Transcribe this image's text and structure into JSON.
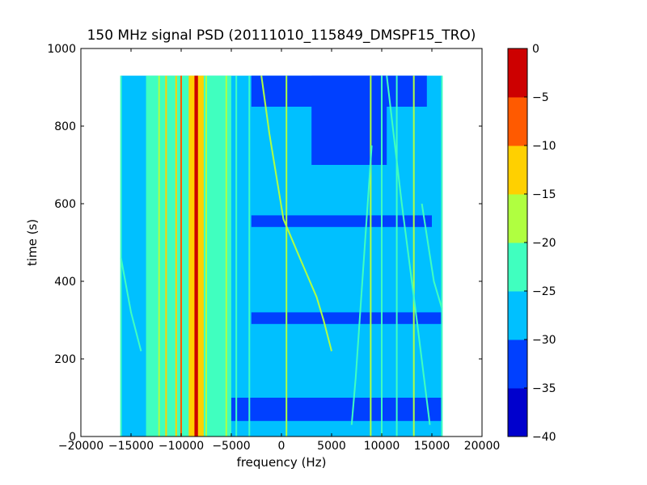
{
  "chart_data": {
    "type": "heatmap",
    "title": "150 MHz signal PSD (20111010_115849_DMSPF15_TRO)",
    "xlabel": "frequency (Hz)",
    "ylabel": "time (s)",
    "xlim": [
      -20000,
      20000
    ],
    "ylim": [
      0,
      1000
    ],
    "xticks": [
      -20000,
      -15000,
      -10000,
      -5000,
      0,
      5000,
      10000,
      15000,
      20000
    ],
    "xtick_labels": [
      "−20000",
      "−15000",
      "−10000",
      "−5000",
      "0",
      "5000",
      "10000",
      "15000",
      "20000"
    ],
    "yticks": [
      0,
      200,
      400,
      600,
      800,
      1000
    ],
    "ytick_labels": [
      "0",
      "200",
      "400",
      "600",
      "800",
      "1000"
    ],
    "data_extent": {
      "x": [
        -16000,
        16000
      ],
      "y": [
        0,
        930
      ]
    },
    "background_level_db": -27.5,
    "colorbar": {
      "levels": [
        -40,
        -35,
        -30,
        -25,
        -20,
        -15,
        -10,
        -5,
        0
      ],
      "tick_labels": [
        "−40",
        "−35",
        "−30",
        "−25",
        "−20",
        "−15",
        "−10",
        "−5",
        "0"
      ],
      "colors": [
        "#0000cd",
        "#0040ff",
        "#00c0ff",
        "#40ffbf",
        "#b0ff40",
        "#ffd000",
        "#ff5a00",
        "#cd0000"
      ],
      "placement": "right"
    },
    "low_power_bands": [
      {
        "t": [
          40,
          100
        ],
        "f": [
          -5000,
          16000
        ],
        "db": -32.5
      },
      {
        "t": [
          290,
          320
        ],
        "f": [
          -3000,
          16000
        ],
        "db": -32.5
      },
      {
        "t": [
          540,
          570
        ],
        "f": [
          -3000,
          15000
        ],
        "db": -32.5
      },
      {
        "t": [
          850,
          930
        ],
        "f": [
          -3000,
          14500
        ],
        "db": -32.5
      },
      {
        "t": [
          700,
          930
        ],
        "f": [
          3000,
          10500
        ],
        "db": -32.5
      }
    ],
    "warm_region": {
      "t": [
        0,
        930
      ],
      "f": [
        -13500,
        -5000
      ],
      "db": -22.5
    },
    "carrier": {
      "f": -8500,
      "t": [
        0,
        930
      ],
      "width_hz": 350,
      "db": -2.5,
      "envelope_width_hz": 1500,
      "envelope_db": -12.5
    },
    "vertical_lines": [
      {
        "f": -16000,
        "db": -22.5
      },
      {
        "f": -13000,
        "db": -22.5
      },
      {
        "f": -12200,
        "db": -17.5
      },
      {
        "f": -11500,
        "db": -12.5
      },
      {
        "f": -10500,
        "db": -12.5
      },
      {
        "f": -10000,
        "db": -7.5
      },
      {
        "f": -9000,
        "db": -17.5
      },
      {
        "f": -7500,
        "db": -17.5
      },
      {
        "f": -6500,
        "db": -22.5
      },
      {
        "f": -5500,
        "db": -17.5
      },
      {
        "f": -4500,
        "db": -22.5
      },
      {
        "f": -3200,
        "db": -22.5
      },
      {
        "f": 500,
        "db": -17.5
      },
      {
        "f": 8900,
        "db": -17.5
      },
      {
        "f": 10000,
        "db": -22.5
      },
      {
        "f": 11500,
        "db": -22.5
      },
      {
        "f": 13200,
        "db": -17.5
      },
      {
        "f": 16000,
        "db": -22.5
      }
    ],
    "curves": [
      {
        "points": [
          [
            -2000,
            930
          ],
          [
            -1200,
            780
          ],
          [
            200,
            560
          ],
          [
            2000,
            450
          ],
          [
            3500,
            360
          ],
          [
            4200,
            300
          ],
          [
            5000,
            220
          ]
        ],
        "db": -17.5
      },
      {
        "points": [
          [
            -16000,
            460
          ],
          [
            -15000,
            320
          ],
          [
            -14000,
            220
          ]
        ],
        "db": -22.5
      },
      {
        "points": [
          [
            9000,
            750
          ],
          [
            8600,
            600
          ],
          [
            8200,
            450
          ],
          [
            7800,
            300
          ],
          [
            7400,
            150
          ],
          [
            7000,
            30
          ]
        ],
        "db": -22.5
      },
      {
        "points": [
          [
            10500,
            930
          ],
          [
            12000,
            600
          ],
          [
            13500,
            300
          ],
          [
            14800,
            30
          ]
        ],
        "db": -22.5
      },
      {
        "points": [
          [
            14000,
            600
          ],
          [
            15200,
            400
          ],
          [
            16000,
            330
          ]
        ],
        "db": -22.5
      }
    ]
  }
}
